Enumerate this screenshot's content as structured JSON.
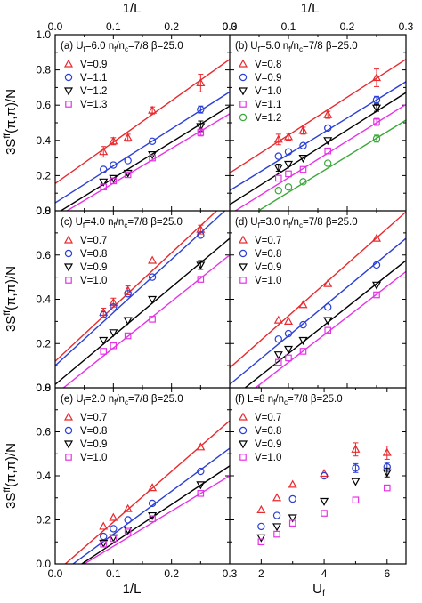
{
  "figure": {
    "top_axis_label": "1/L",
    "left_axis_label": "3S^ff(π,π)/N",
    "bottom_axis_label_left": "1/L",
    "bottom_axis_label_right": "U_f"
  },
  "chart_data": [
    {
      "type": "scatter",
      "panel": "(a)",
      "title": "(a) U_f=6.0  n_f/n_c=7/8  β=25.0",
      "xlabel": "1/L",
      "ylabel": "3S^ff(π,π)/N",
      "xlim": [
        0,
        0.3
      ],
      "ylim": [
        0,
        1.0
      ],
      "x_ticks": [
        "0.0",
        "0.1",
        "0.2",
        "0.3"
      ],
      "y_ticks": [
        "0.0",
        "0.2",
        "0.4",
        "0.6",
        "0.8",
        "1.0"
      ],
      "grid": false,
      "legend": "top-left",
      "x": [
        0.083,
        0.1,
        0.125,
        0.167,
        0.25
      ],
      "series": [
        {
          "name": "V=0.9",
          "marker": "triangle-up",
          "color": "#e8292e",
          "values": [
            0.335,
            0.395,
            0.415,
            0.57,
            0.725
          ],
          "errors": [
            0.03,
            0.02,
            0.02,
            0.02,
            0.05
          ],
          "fit": [
            0.155,
            2.35
          ]
        },
        {
          "name": "V=1.1",
          "marker": "circle",
          "color": "#2a3fd6",
          "values": [
            0.235,
            0.26,
            0.285,
            0.395,
            0.575
          ],
          "errors": [
            0.01,
            0.01,
            0.01,
            0.01,
            0.02
          ],
          "fit": [
            0.045,
            2.1
          ]
        },
        {
          "name": "V=1.2",
          "marker": "triangle-down",
          "color": "#000000",
          "values": [
            0.165,
            0.185,
            0.215,
            0.32,
            0.48
          ],
          "errors": [
            0.01,
            0.01,
            0.01,
            0.01,
            0.03
          ],
          "fit": [
            -0.02,
            2.05
          ]
        },
        {
          "name": "V=1.3",
          "marker": "square",
          "color": "#e632e6",
          "values": [
            0.135,
            0.17,
            0.205,
            0.3,
            0.445
          ],
          "errors": [
            0.01,
            0.01,
            0.01,
            0.01,
            0.02
          ],
          "fit": [
            -0.04,
            1.97
          ]
        }
      ]
    },
    {
      "type": "scatter",
      "panel": "(b)",
      "title": "(b) U_f=5.0  n_f/n_c=7/8  β=25.0",
      "xlabel": "1/L",
      "ylabel": "",
      "xlim": [
        0,
        0.3
      ],
      "ylim": [
        0,
        1.0
      ],
      "x_ticks": [
        "0.0",
        "0.1",
        "0.2",
        "0.3"
      ],
      "y_ticks": [],
      "grid": false,
      "legend": "top-left",
      "x": [
        0.083,
        0.1,
        0.125,
        0.167,
        0.25
      ],
      "series": [
        {
          "name": "V=0.8",
          "marker": "triangle-up",
          "color": "#e8292e",
          "values": [
            0.405,
            0.42,
            0.455,
            0.545,
            0.755
          ],
          "errors": [
            0.03,
            0.02,
            0.02,
            0.02,
            0.05
          ],
          "fit": [
            0.215,
            2.15
          ]
        },
        {
          "name": "V=0.9",
          "marker": "circle",
          "color": "#2a3fd6",
          "values": [
            0.31,
            0.335,
            0.37,
            0.47,
            0.63
          ],
          "errors": [
            0.01,
            0.01,
            0.01,
            0.01,
            0.02
          ],
          "fit": [
            0.115,
            2.06
          ]
        },
        {
          "name": "V=1.0",
          "marker": "triangle-down",
          "color": "#000000",
          "values": [
            0.245,
            0.265,
            0.3,
            0.4,
            0.585
          ],
          "errors": [
            0.02,
            0.01,
            0.01,
            0.01,
            0.02
          ],
          "fit": [
            0.035,
            2.12
          ]
        },
        {
          "name": "V=1.1",
          "marker": "square",
          "color": "#e632e6",
          "values": [
            0.185,
            0.21,
            0.235,
            0.34,
            0.505
          ],
          "errors": [
            0.01,
            0.01,
            0.01,
            0.01,
            0.02
          ],
          "fit": [
            -0.02,
            2.08
          ]
        },
        {
          "name": "V=1.2",
          "marker": "circle",
          "color": "#3aa839",
          "values": [
            0.115,
            0.135,
            0.165,
            0.27,
            0.41
          ],
          "errors": [
            0.01,
            0.01,
            0.01,
            0.01,
            0.02
          ],
          "fit": [
            -0.1,
            2.05
          ]
        }
      ]
    },
    {
      "type": "scatter",
      "panel": "(c)",
      "title": "(c) U_f=4.0  n_f/n_c=7/8  β=25.0",
      "xlabel": "1/L",
      "ylabel": "3S^ff(π,π)/N",
      "xlim": [
        0,
        0.3
      ],
      "ylim": [
        0,
        0.8
      ],
      "x_ticks": [
        "0.0",
        "0.1",
        "0.2",
        "0.3"
      ],
      "y_ticks": [
        "0.0",
        "0.2",
        "0.4",
        "0.6",
        "0.8"
      ],
      "grid": false,
      "legend": "top-left",
      "x": [
        0.083,
        0.1,
        0.125,
        0.167,
        0.25
      ],
      "series": [
        {
          "name": "V=0.7",
          "marker": "triangle-up",
          "color": "#e8292e",
          "values": [
            0.34,
            0.385,
            0.44,
            0.575,
            0.715
          ],
          "errors": [
            0.02,
            0.02,
            0.02,
            0.01,
            0.02
          ],
          "fit": [
            0.12,
            2.45
          ]
        },
        {
          "name": "V=0.8",
          "marker": "circle",
          "color": "#2a3fd6",
          "values": [
            0.33,
            0.365,
            0.425,
            0.5,
            0.69
          ],
          "errors": [
            0.01,
            0.01,
            0.01,
            0.01,
            0.01
          ],
          "fit": [
            0.1,
            2.4
          ]
        },
        {
          "name": "V=0.9",
          "marker": "triangle-down",
          "color": "#000000",
          "values": [
            0.215,
            0.25,
            0.305,
            0.4,
            0.555
          ],
          "errors": [
            0.01,
            0.01,
            0.01,
            0.01,
            0.02
          ],
          "fit": [
            0.015,
            2.2
          ]
        },
        {
          "name": "V=1.0",
          "marker": "square",
          "color": "#e632e6",
          "values": [
            0.165,
            0.19,
            0.235,
            0.31,
            0.49
          ],
          "errors": [
            0.01,
            0.01,
            0.01,
            0.01,
            0.01
          ],
          "fit": [
            -0.03,
            2.1
          ]
        }
      ]
    },
    {
      "type": "scatter",
      "panel": "(d)",
      "title": "(d) U_f=3.0  n_f/n_c=7/8  β=25.0",
      "xlabel": "1/L",
      "ylabel": "",
      "xlim": [
        0,
        0.3
      ],
      "ylim": [
        0,
        0.8
      ],
      "x_ticks": [
        "0.0",
        "0.1",
        "0.2",
        "0.3"
      ],
      "y_ticks": [],
      "grid": false,
      "legend": "top-left",
      "x": [
        0.083,
        0.1,
        0.125,
        0.167,
        0.25
      ],
      "series": [
        {
          "name": "V=0.7",
          "marker": "triangle-up",
          "color": "#e8292e",
          "values": [
            0.305,
            0.3,
            0.375,
            0.47,
            0.675
          ],
          "errors": [
            0.01,
            0.01,
            0.01,
            0.01,
            0.01
          ],
          "fit": [
            0.09,
            2.35
          ]
        },
        {
          "name": "V=0.8",
          "marker": "circle",
          "color": "#2a3fd6",
          "values": [
            0.22,
            0.245,
            0.285,
            0.365,
            0.555
          ],
          "errors": [
            0.01,
            0.01,
            0.01,
            0.01,
            0.01
          ],
          "fit": [
            0.015,
            2.2
          ]
        },
        {
          "name": "V=0.9",
          "marker": "triangle-down",
          "color": "#000000",
          "values": [
            0.15,
            0.175,
            0.215,
            0.305,
            0.465
          ],
          "errors": [
            0.01,
            0.01,
            0.01,
            0.01,
            0.01
          ],
          "fit": [
            -0.055,
            2.1
          ]
        },
        {
          "name": "V=1.0",
          "marker": "square",
          "color": "#e632e6",
          "values": [
            0.115,
            0.135,
            0.165,
            0.26,
            0.42
          ],
          "errors": [
            0.01,
            0.01,
            0.01,
            0.01,
            0.01
          ],
          "fit": [
            -0.09,
            2.05
          ]
        }
      ]
    },
    {
      "type": "scatter",
      "panel": "(e)",
      "title": "(e) U_f=2.0  n_f/n_c=7/8  β=25.0",
      "xlabel": "1/L",
      "ylabel": "3S^ff(π,π)/N",
      "xlim": [
        0,
        0.3
      ],
      "ylim": [
        0,
        0.8
      ],
      "x_ticks": [
        "0.0",
        "0.1",
        "0.2",
        "0.3"
      ],
      "y_ticks": [
        "0.0",
        "0.2",
        "0.4",
        "0.6",
        "0.8"
      ],
      "grid": false,
      "legend": "top-left",
      "x": [
        0.083,
        0.1,
        0.125,
        0.167,
        0.25
      ],
      "series": [
        {
          "name": "V=0.7",
          "marker": "triangle-up",
          "color": "#e8292e",
          "values": [
            0.17,
            0.21,
            0.25,
            0.345,
            0.53
          ],
          "errors": [
            0.005,
            0.005,
            0.005,
            0.005,
            0.005
          ],
          "fit": [
            -0.04,
            2.3
          ]
        },
        {
          "name": "V=0.8",
          "marker": "circle",
          "color": "#2a3fd6",
          "values": [
            0.125,
            0.16,
            0.2,
            0.275,
            0.42
          ],
          "errors": [
            0.005,
            0.005,
            0.005,
            0.005,
            0.005
          ],
          "fit": [
            -0.06,
            1.95
          ]
        },
        {
          "name": "V=0.9",
          "marker": "triangle-down",
          "color": "#000000",
          "values": [
            0.095,
            0.12,
            0.155,
            0.22,
            0.36
          ],
          "errors": [
            0.005,
            0.005,
            0.005,
            0.005,
            0.005
          ],
          "fit": [
            -0.08,
            1.75
          ]
        },
        {
          "name": "V=1.0",
          "marker": "square",
          "color": "#e632e6",
          "values": [
            0.09,
            0.115,
            0.145,
            0.205,
            0.32
          ],
          "errors": [
            0.005,
            0.005,
            0.005,
            0.005,
            0.005
          ],
          "fit": [
            -0.08,
            1.6
          ]
        }
      ]
    },
    {
      "type": "scatter",
      "panel": "(f)",
      "title": "(f) L=8  n_f/n_c=7/8  β=25.0",
      "xlabel": "U_f",
      "ylabel": "",
      "xlim": [
        1,
        6.6
      ],
      "ylim": [
        0,
        0.8
      ],
      "x_ticks": [
        "2",
        "4",
        "6"
      ],
      "y_ticks": [],
      "grid": false,
      "legend": "top-left",
      "x": [
        2,
        2.5,
        3,
        4,
        5,
        6
      ],
      "series": [
        {
          "name": "V=0.7",
          "marker": "triangle-up",
          "color": "#e8292e",
          "values": [
            0.245,
            0.3,
            0.36,
            0.41,
            0.52,
            0.505
          ],
          "errors": [
            0.005,
            0.005,
            0.01,
            0.01,
            0.03,
            0.03
          ]
        },
        {
          "name": "V=0.8",
          "marker": "circle",
          "color": "#2a3fd6",
          "values": [
            0.17,
            0.22,
            0.295,
            0.4,
            0.435,
            0.44
          ],
          "errors": [
            0.005,
            0.005,
            0.005,
            0.01,
            0.02,
            0.02
          ]
        },
        {
          "name": "V=0.9",
          "marker": "triangle-down",
          "color": "#000000",
          "values": [
            0.12,
            0.17,
            0.21,
            0.285,
            0.375,
            0.415
          ],
          "errors": [
            0.005,
            0.005,
            0.005,
            0.005,
            0.01,
            0.02
          ]
        },
        {
          "name": "V=1.0",
          "marker": "square",
          "color": "#e632e6",
          "values": [
            0.1,
            0.135,
            0.185,
            0.23,
            0.29,
            0.345
          ],
          "errors": [
            0.005,
            0.005,
            0.005,
            0.005,
            0.005,
            0.005
          ]
        }
      ]
    }
  ]
}
